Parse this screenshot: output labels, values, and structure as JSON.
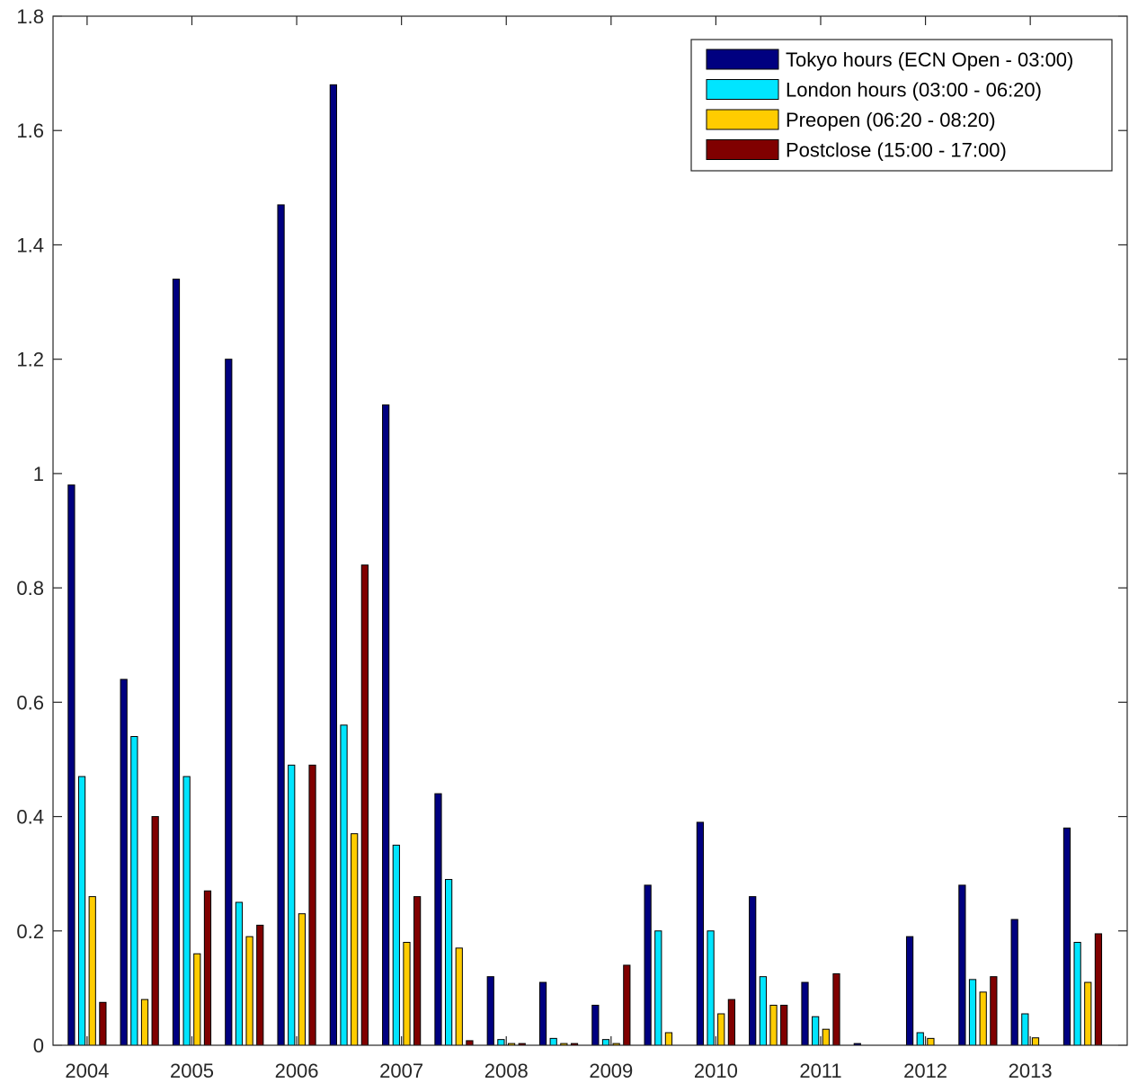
{
  "chart_data": {
    "type": "bar",
    "title": "",
    "xlabel": "",
    "ylabel": "",
    "ylim": [
      0,
      1.8
    ],
    "xlim": [
      2003.675,
      2013.925
    ],
    "yticks": [
      0,
      0.2,
      0.4,
      0.6,
      0.8,
      1,
      1.2,
      1.4,
      1.6,
      1.8
    ],
    "ytick_labels": [
      "0",
      "0.2",
      "0.4",
      "0.6",
      "0.8",
      "1",
      "1.2",
      "1.4",
      "1.6",
      "1.8"
    ],
    "xticks": [
      2004,
      2005,
      2006,
      2007,
      2008,
      2009,
      2010,
      2011,
      2012,
      2013
    ],
    "xtick_labels": [
      "2004",
      "2005",
      "2006",
      "2007",
      "2008",
      "2009",
      "2010",
      "2011",
      "2012",
      "2013"
    ],
    "x": [
      2004,
      2004.5,
      2005,
      2005.5,
      2006,
      2006.5,
      2007,
      2007.5,
      2008,
      2008.5,
      2009,
      2009.5,
      2010,
      2010.5,
      2011,
      2011.5,
      2012,
      2012.5,
      2013,
      2013.5
    ],
    "grid": false,
    "legend_position": "top-right",
    "series": [
      {
        "name": "Tokyo hours (ECN Open - 03:00)",
        "color": "#000080",
        "values": [
          0.98,
          0.64,
          1.34,
          1.2,
          1.47,
          1.68,
          1.12,
          0.44,
          0.12,
          0.11,
          0.07,
          0.28,
          0.39,
          0.26,
          0.11,
          0.003,
          0.19,
          0.28,
          0.22,
          0.38
        ]
      },
      {
        "name": "London hours (03:00 - 06:20)",
        "color": "#00E5FF",
        "values": [
          0.47,
          0.54,
          0.47,
          0.25,
          0.49,
          0.56,
          0.35,
          0.29,
          0.01,
          0.012,
          0.01,
          0.2,
          0.2,
          0.12,
          0.05,
          0.0,
          0.022,
          0.115,
          0.055,
          0.18
        ]
      },
      {
        "name": "Preopen (06:20 - 08:20)",
        "color": "#FFCC00",
        "values": [
          0.26,
          0.08,
          0.16,
          0.19,
          0.23,
          0.37,
          0.18,
          0.17,
          0.003,
          0.003,
          0.003,
          0.022,
          0.055,
          0.07,
          0.028,
          0.0,
          0.012,
          0.093,
          0.013,
          0.11
        ]
      },
      {
        "name": "Postclose (15:00 - 17:00)",
        "color": "#800000",
        "values": [
          0.075,
          0.4,
          0.27,
          0.21,
          0.49,
          0.84,
          0.26,
          0.008,
          0.003,
          0.003,
          0.14,
          0.0,
          0.08,
          0.07,
          0.125,
          0.0,
          0.0,
          0.12,
          0.0,
          0.195
        ]
      }
    ]
  }
}
